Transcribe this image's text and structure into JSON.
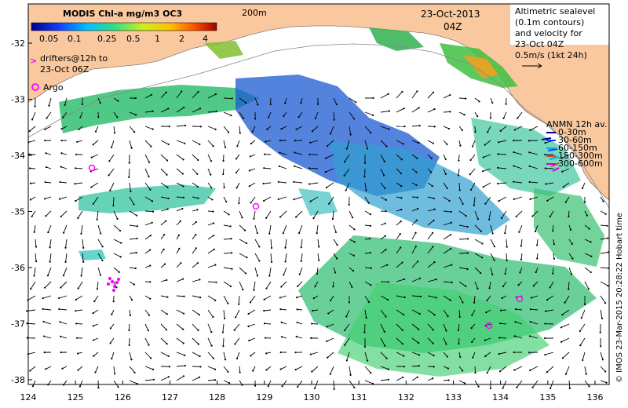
{
  "colorbar": {
    "title": "MODIS Chl-a mg/m3 OC3",
    "ticks": [
      "0.05",
      "0.1",
      "0.25",
      "0.5",
      "1",
      "2",
      "4"
    ]
  },
  "labels": {
    "isobath": "200m",
    "date": "23-Oct-2013",
    "time": "04Z",
    "altimetry": [
      "Altimetric sealevel",
      "(0.1m contours)",
      "and velocity for",
      "23-Oct 04Z"
    ],
    "speed_key": "0.5m/s (1kt 24h)",
    "drifters": [
      "drifters@12h to",
      "23-Oct 06Z"
    ],
    "drifters_marker": ">",
    "argo": "Argo",
    "credit": "© IMOS 23-Mar-2015 20:28:22 Hobart time"
  },
  "anmn": {
    "title": "ANMN 12h av.",
    "items": [
      {
        "label": "0-30m",
        "color": "#000088"
      },
      {
        "label": "30-60m",
        "color": "#1040ff"
      },
      {
        "label": "60-150m",
        "color": "#00b0d0"
      },
      {
        "label": "150-300m",
        "color": "#d04030"
      },
      {
        "label": "300-600m",
        "color": "#d000d0"
      }
    ]
  },
  "axes": {
    "x_ticks": [
      "124",
      "125",
      "126",
      "127",
      "128",
      "129",
      "130",
      "131",
      "132",
      "133",
      "134",
      "135",
      "136"
    ],
    "y_ticks": [
      "-32",
      "-33",
      "-34",
      "-35",
      "-36",
      "-37",
      "-38"
    ]
  },
  "colors": {
    "land": "#f9c89f",
    "argo": "#ff00ff",
    "chl_low": "#1040d0",
    "chl_mid": "#30c070",
    "chl_high": "#ffcc00"
  }
}
